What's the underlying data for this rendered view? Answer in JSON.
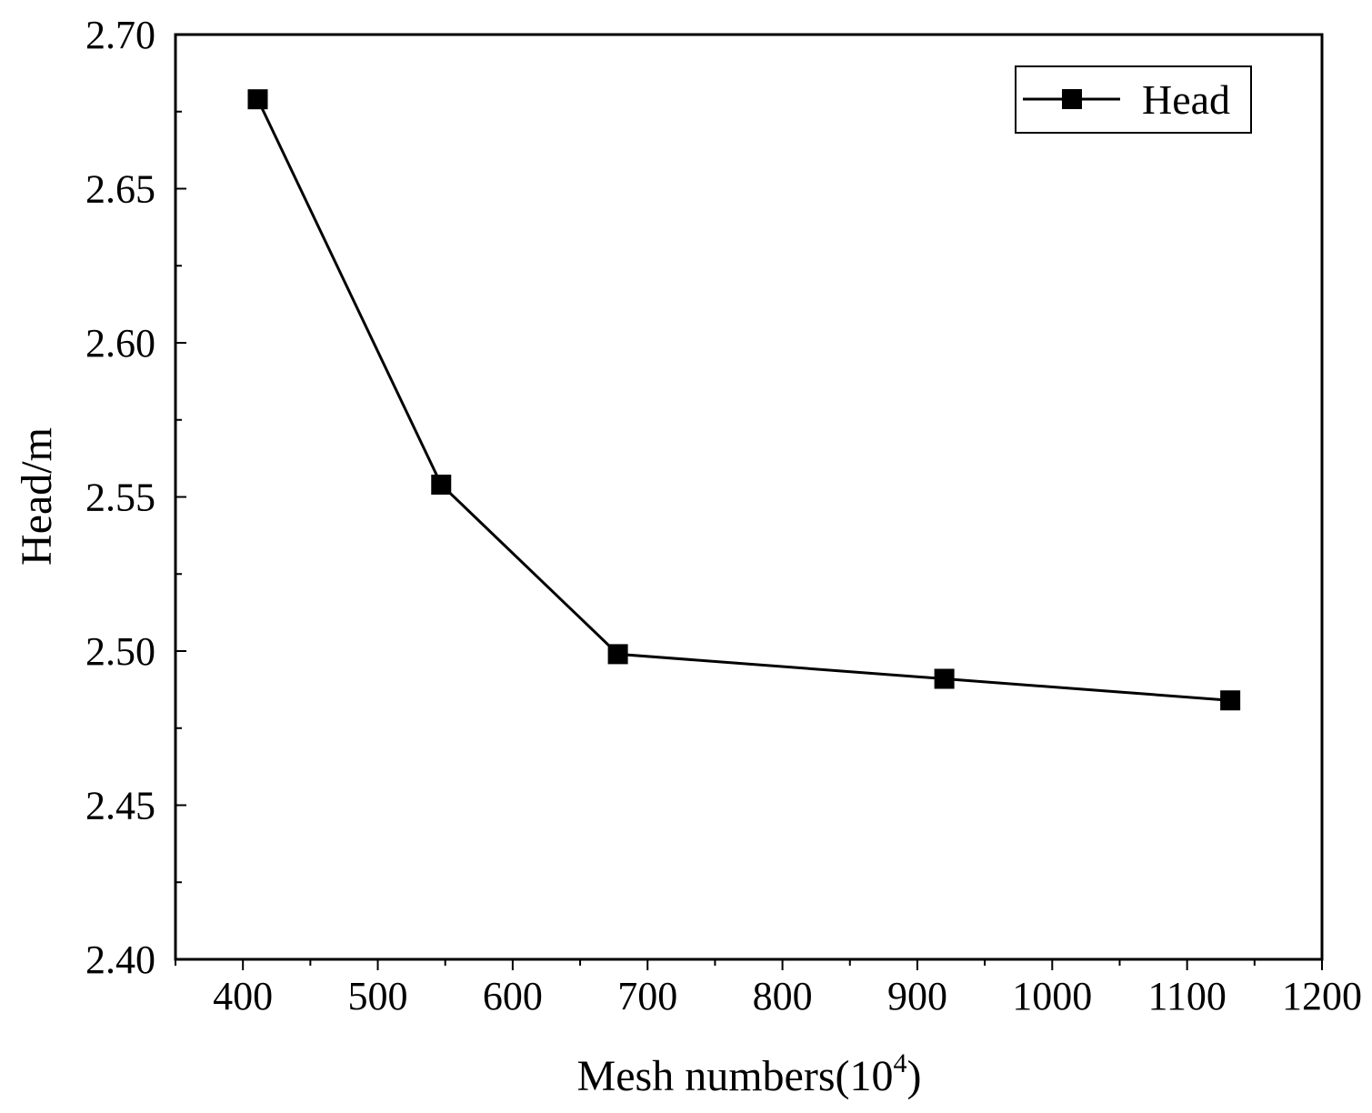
{
  "chart_data": {
    "type": "line",
    "title": "",
    "xlabel_main": "Mesh numbers(10",
    "xlabel_sup": "4",
    "xlabel_close": ")",
    "ylabel": "Head/m",
    "xlim": [
      350,
      1200
    ],
    "ylim": [
      2.4,
      2.7
    ],
    "xticks": [
      400,
      500,
      600,
      700,
      800,
      900,
      1000,
      1100,
      1200
    ],
    "xtick_labels": [
      "400",
      "500",
      "600",
      "700",
      "800",
      "900",
      "1000",
      "1100",
      "1200"
    ],
    "yticks": [
      2.4,
      2.45,
      2.5,
      2.55,
      2.6,
      2.65,
      2.7
    ],
    "ytick_labels": [
      "2.40",
      "2.45",
      "2.50",
      "2.55",
      "2.60",
      "2.65",
      "2.70"
    ],
    "x_minor_step": 50,
    "y_minor_step": 0.025,
    "grid": false,
    "legend_position": "top-right",
    "marker": "square",
    "line_color": "#000000",
    "series": [
      {
        "name": "Head",
        "x": [
          411,
          547,
          678,
          920,
          1132
        ],
        "values": [
          2.679,
          2.554,
          2.499,
          2.491,
          2.484
        ]
      }
    ]
  }
}
